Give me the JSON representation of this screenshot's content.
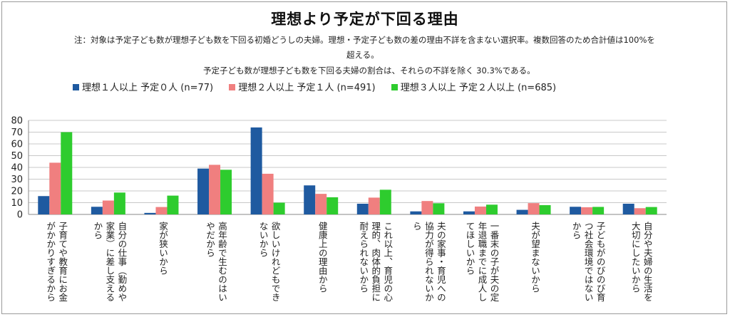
{
  "title": "理想より予定が下回る理由",
  "notes": {
    "line1": "注：対象は予定子ども数が理想子ども数を下回る初婚どうしの夫婦。理想・予定子ども数の差の理由不詳を含まない選択率。複数回答のため合計値は100%を",
    "line2": "超える。",
    "line3": "予定子ども数が理想子ども数を下回る夫婦の割合は、それらの不詳を除く 30.3%である。"
  },
  "chart_data": {
    "type": "bar",
    "categories": [
      "子育てや教育にお金\nがかかりすぎるから",
      "自分の仕事（勤めや\n家業）に差し支える\nから",
      "家が狭いから",
      "高年齢で生むのはい\nやだから",
      "欲しいけれどもでき\nないから",
      "健康上の理由から",
      "これ以上、育児の心\n理的、肉体的負担に\n耐えられないから",
      "夫の家事・育児への\n協力が得られないか\nら",
      "一番末の子が夫の定\n年退職までに成人し\nてほしいから",
      "夫が望まないから",
      "子どもがのびのび育\nつ社会環境ではない\nから",
      "自分や夫婦の生活を\n大切にしたいから"
    ],
    "series": [
      {
        "name": "理想１人以上 予定０人 (n=77)",
        "color": "#1f5aa0",
        "values": [
          15.6,
          6.5,
          1.3,
          39.0,
          74.0,
          24.7,
          9.1,
          2.6,
          2.6,
          3.9,
          6.5,
          9.1
        ]
      },
      {
        "name": "理想２人以上 予定１人 (n=491)",
        "color": "#f07f7f",
        "values": [
          44.0,
          11.8,
          6.3,
          42.2,
          34.6,
          17.5,
          14.3,
          11.4,
          6.7,
          9.6,
          6.1,
          5.3
        ]
      },
      {
        "name": "理想３人以上 予定２人以上 (n=685)",
        "color": "#2ecc2e",
        "values": [
          70.0,
          18.6,
          16.0,
          38.0,
          10.0,
          14.6,
          21.0,
          9.5,
          8.3,
          7.9,
          6.4,
          6.3
        ]
      }
    ],
    "yticks": [
      0,
      10,
      20,
      30,
      40,
      50,
      60,
      70,
      80
    ],
    "ylim": [
      0,
      80
    ],
    "grid": true,
    "legend_position": "top"
  }
}
